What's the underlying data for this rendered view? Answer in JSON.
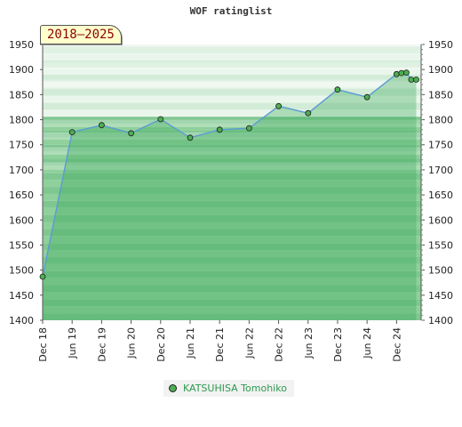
{
  "title": "WOF ratinglist",
  "period": "2018–2025",
  "chart_data": {
    "type": "area",
    "title": "WOF ratinglist",
    "ylim": [
      1400,
      1950
    ],
    "y_ticks": [
      "1400",
      "1450",
      "1500",
      "1550",
      "1600",
      "1650",
      "1700",
      "1750",
      "1800",
      "1850",
      "1900",
      "1950"
    ],
    "x_ticks": [
      "Dec 18",
      "Jun 19",
      "Dec 19",
      "Jun 20",
      "Dec 20",
      "Jun 21",
      "Dec 21",
      "Jun 22",
      "Dec 22",
      "Jun 23",
      "Dec 23",
      "Jun 24",
      "Dec 24"
    ],
    "x_range": [
      "2018-12",
      "2025-05"
    ],
    "legend_position": "bottom",
    "series": [
      {
        "name": "KATSUHISA Tomohiko",
        "points": [
          {
            "x": "2018-12",
            "y": 1487
          },
          {
            "x": "2019-06",
            "y": 1775
          },
          {
            "x": "2019-12",
            "y": 1789
          },
          {
            "x": "2020-06",
            "y": 1773
          },
          {
            "x": "2020-12",
            "y": 1801
          },
          {
            "x": "2021-06",
            "y": 1764
          },
          {
            "x": "2021-12",
            "y": 1780
          },
          {
            "x": "2022-06",
            "y": 1783
          },
          {
            "x": "2022-12",
            "y": 1827
          },
          {
            "x": "2023-06",
            "y": 1813
          },
          {
            "x": "2023-12",
            "y": 1860
          },
          {
            "x": "2024-06",
            "y": 1845
          },
          {
            "x": "2024-12",
            "y": 1891
          },
          {
            "x": "2025-01",
            "y": 1893
          },
          {
            "x": "2025-02",
            "y": 1894
          },
          {
            "x": "2025-03",
            "y": 1880
          },
          {
            "x": "2025-04",
            "y": 1880
          }
        ]
      }
    ],
    "colors": {
      "line": "#5b9bd5",
      "marker": "#4caf50",
      "band_light": "#9fd6ab",
      "band_dark": "#7cc48c",
      "legend_text": "#2e9a4e"
    }
  }
}
